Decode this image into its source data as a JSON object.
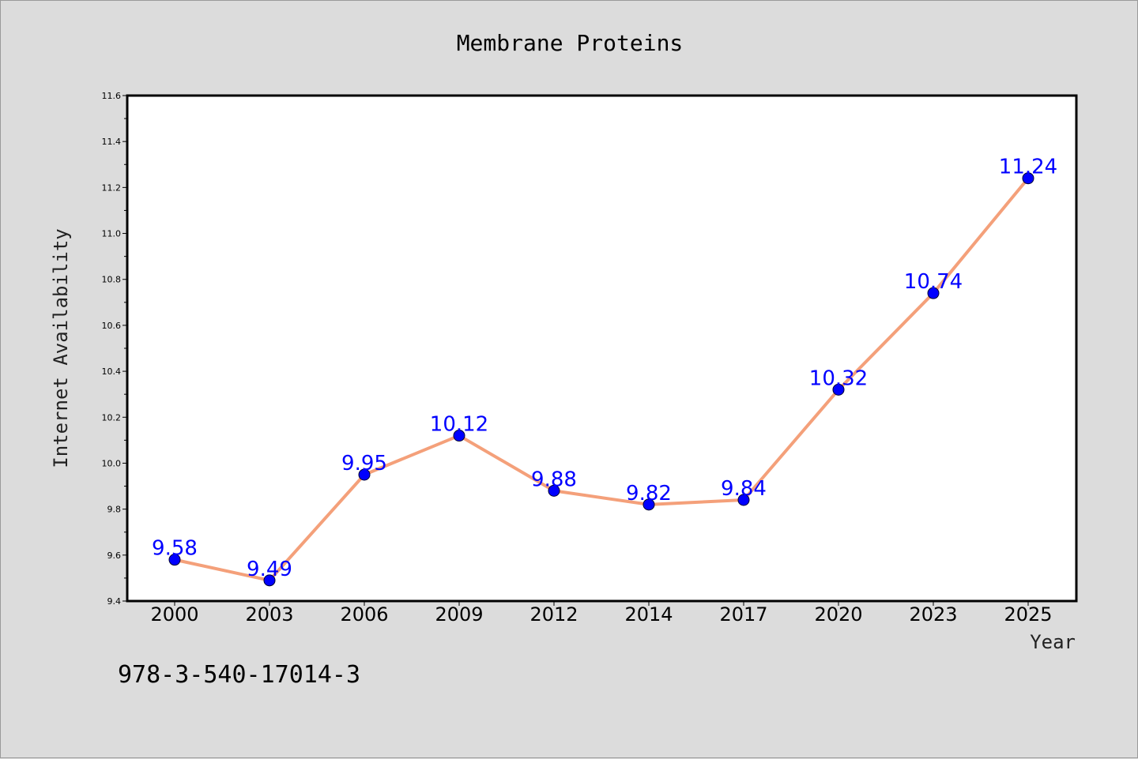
{
  "chart_data": {
    "type": "line",
    "title": "Membrane Proteins",
    "xlabel": "Year",
    "ylabel": "Internet Availability",
    "categories": [
      "2000",
      "2003",
      "2006",
      "2009",
      "2012",
      "2014",
      "2017",
      "2020",
      "2023",
      "2025"
    ],
    "series": [
      {
        "values": [
          9.58,
          9.49,
          9.95,
          10.12,
          9.88,
          9.82,
          9.84,
          10.32,
          10.74,
          11.24
        ],
        "line_color": "#f4a07a",
        "marker_color": "#0000ff",
        "labels": [
          "9.58",
          "9.49",
          "9.95",
          "10.12",
          "9.88",
          "9.82",
          "9.84",
          "10.32",
          "10.74",
          "11.24"
        ]
      }
    ],
    "ylim": [
      9.4,
      11.6
    ],
    "yticks": [
      "9.4",
      "9.6",
      "9.8",
      "10.0",
      "10.2",
      "10.4",
      "10.6",
      "10.8",
      "11.0",
      "11.2",
      "11.4",
      "11.6"
    ],
    "grid": false,
    "legend": "none"
  },
  "footer_text": "978-3-540-17014-3",
  "colors": {
    "background": "#dcdcdc",
    "plot_background": "#ffffff",
    "line": "#f4a07a",
    "marker": "#0000ff",
    "data_label": "#0000ff"
  }
}
